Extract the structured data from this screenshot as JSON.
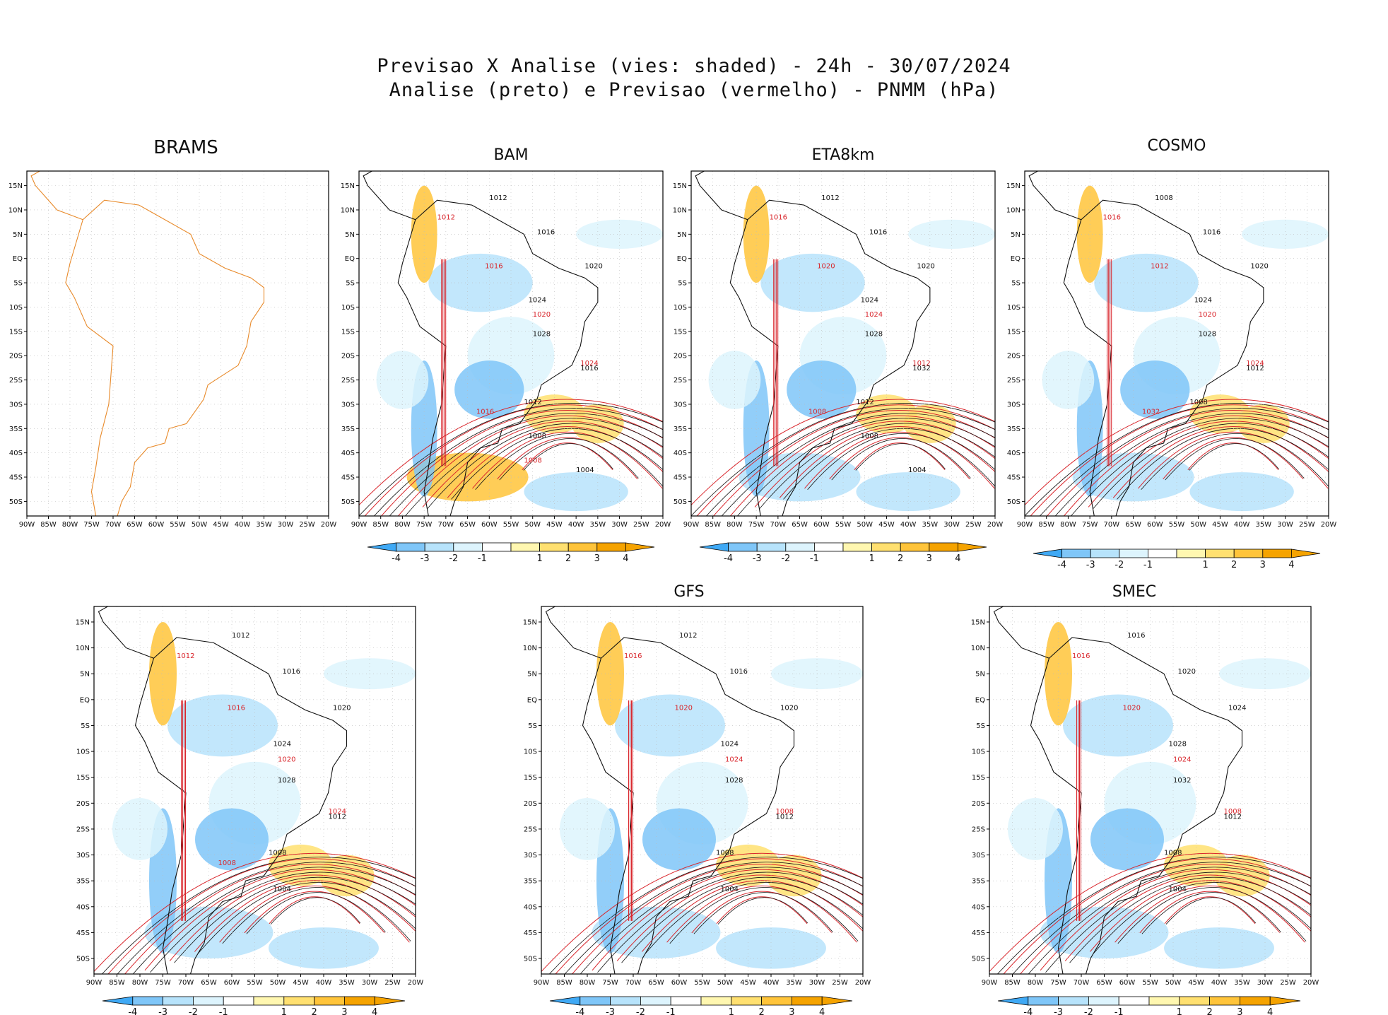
{
  "header": {
    "line1": "Previsao X Analise (vies: shaded) - 24h - 30/07/2024",
    "line2": "Analise (preto) e Previsao (vermelho) - PNMM (hPa)"
  },
  "colors": {
    "neg4": "#3fa9f5",
    "neg3": "#7fc6f8",
    "neg2": "#b7e3fb",
    "neg1": "#ddf4fd",
    "zero": "#ffffff",
    "pos1": "#fff7b0",
    "pos2": "#ffe070",
    "pos3": "#ffc43a",
    "pos4": "#f5a300",
    "analysis_line": "#111111",
    "forecast_line": "#d9262c",
    "brams_map": "#e88a2a"
  },
  "axis": {
    "lon_ticks": [
      "90W",
      "85W",
      "80W",
      "75W",
      "70W",
      "65W",
      "60W",
      "55W",
      "50W",
      "45W",
      "40W",
      "35W",
      "30W",
      "25W",
      "20W"
    ],
    "lat_ticks": [
      "15N",
      "10N",
      "5N",
      "EQ",
      "5S",
      "10S",
      "15S",
      "20S",
      "25S",
      "30S",
      "35S",
      "40S",
      "45S",
      "50S"
    ]
  },
  "colorbar": {
    "labels": [
      "-4",
      "-3",
      "-2",
      "-1",
      "1",
      "2",
      "3",
      "4"
    ]
  },
  "panels": [
    {
      "id": "brams",
      "title": "BRAMS",
      "empty": true
    },
    {
      "id": "bam",
      "title": "BAM",
      "analysis_labels": [
        "1012",
        "1016",
        "1020",
        "1024",
        "1028",
        "1016",
        "1012",
        "1008",
        "1004"
      ],
      "forecast_labels": [
        "1012",
        "1016",
        "1020",
        "1024",
        "1016",
        "1008"
      ]
    },
    {
      "id": "eta8km",
      "title": "ETA8km",
      "analysis_labels": [
        "1012",
        "1016",
        "1020",
        "1024",
        "1028",
        "1032",
        "1012",
        "1008",
        "1004"
      ],
      "forecast_labels": [
        "1016",
        "1020",
        "1024",
        "1012",
        "1008"
      ]
    },
    {
      "id": "cosmo",
      "title": "COSMO",
      "analysis_labels": [
        "1008",
        "1016",
        "1020",
        "1024",
        "1028",
        "1012",
        "1008"
      ],
      "forecast_labels": [
        "1016",
        "1012",
        "1020",
        "1024",
        "1032"
      ]
    },
    {
      "id": "panel5",
      "title": "",
      "analysis_labels": [
        "1012",
        "1016",
        "1020",
        "1024",
        "1028",
        "1012",
        "1008",
        "1004"
      ],
      "forecast_labels": [
        "1012",
        "1016",
        "1020",
        "1024",
        "1008"
      ]
    },
    {
      "id": "gfs",
      "title": "GFS",
      "analysis_labels": [
        "1012",
        "1016",
        "1020",
        "1024",
        "1028",
        "1012",
        "1008",
        "1004"
      ],
      "forecast_labels": [
        "1016",
        "1020",
        "1024",
        "1008"
      ]
    },
    {
      "id": "smec",
      "title": "SMEC",
      "analysis_labels": [
        "1016",
        "1020",
        "1024",
        "1028",
        "1032",
        "1012",
        "1008",
        "1004"
      ],
      "forecast_labels": [
        "1016",
        "1020",
        "1024",
        "1008"
      ]
    }
  ]
}
